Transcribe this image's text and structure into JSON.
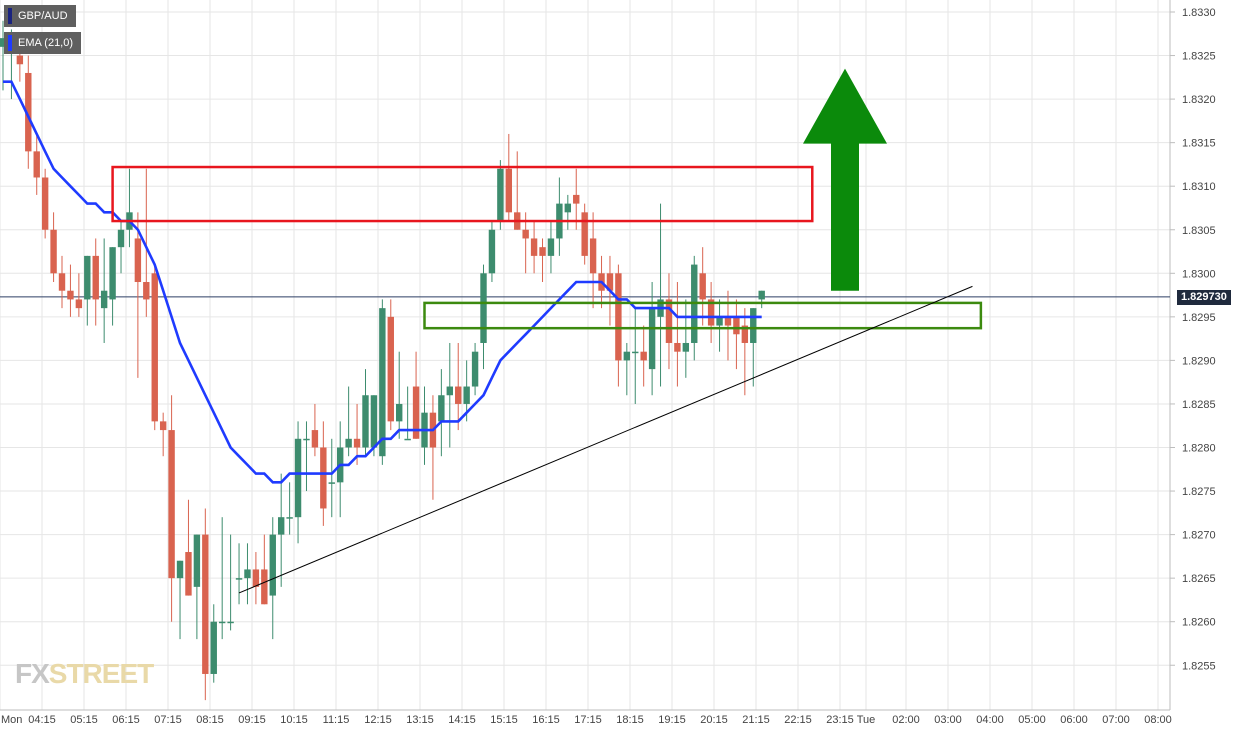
{
  "legend": {
    "symbol": "GBP/AUD",
    "indicator": "EMA (21,0)",
    "symbol_color": "#1a237e",
    "indicator_color": "#1f3bff"
  },
  "current_price": {
    "label": "1.829730",
    "value": 1.82973
  },
  "watermark": {
    "part1": "FX",
    "part2": "STREET"
  },
  "colors": {
    "up": "#3d8c6e",
    "down": "#d9634f",
    "ema": "#1f3bff",
    "resistance_box": "#e8161e",
    "support_box": "#3c8a0f",
    "arrow": "#0b8a0b",
    "trendline": "#000000",
    "grid": "#e6e6e6"
  },
  "chart_data": {
    "type": "candlestick",
    "title": "",
    "ylim": [
      1.825,
      1.833
    ],
    "y_ticks": [
      "1.8330",
      "1.8325",
      "1.8320",
      "1.8315",
      "1.8310",
      "1.8305",
      "1.8300",
      "1.8295",
      "1.8290",
      "1.8285",
      "1.8280",
      "1.8275",
      "1.8270",
      "1.8265",
      "1.8260",
      "1.8255"
    ],
    "x_ticks": [
      "Mon",
      "04:15",
      "05:15",
      "06:15",
      "07:15",
      "08:15",
      "09:15",
      "10:15",
      "11:15",
      "12:15",
      "13:15",
      "14:15",
      "15:15",
      "16:15",
      "17:15",
      "18:15",
      "19:15",
      "20:15",
      "21:15",
      "22:15",
      "23:15",
      "Tue",
      "02:00",
      "03:00",
      "04:00",
      "05:00",
      "06:00",
      "07:00",
      "08:00"
    ],
    "candles": [
      {
        "o": 1.8326,
        "h": 1.8329,
        "l": 1.8321,
        "c": 1.8327
      },
      {
        "o": 1.8326,
        "h": 1.8328,
        "l": 1.832,
        "c": 1.8327
      },
      {
        "o": 1.8325,
        "h": 1.8327,
        "l": 1.8322,
        "c": 1.8324
      },
      {
        "o": 1.8323,
        "h": 1.8325,
        "l": 1.8312,
        "c": 1.8314
      },
      {
        "o": 1.8314,
        "h": 1.8316,
        "l": 1.8309,
        "c": 1.8311
      },
      {
        "o": 1.8311,
        "h": 1.8312,
        "l": 1.8304,
        "c": 1.8305
      },
      {
        "o": 1.8305,
        "h": 1.8307,
        "l": 1.8299,
        "c": 1.83
      },
      {
        "o": 1.83,
        "h": 1.8302,
        "l": 1.8296,
        "c": 1.8298
      },
      {
        "o": 1.8298,
        "h": 1.8301,
        "l": 1.8295,
        "c": 1.8297
      },
      {
        "o": 1.8297,
        "h": 1.83,
        "l": 1.8295,
        "c": 1.8296
      },
      {
        "o": 1.8297,
        "h": 1.8302,
        "l": 1.8294,
        "c": 1.8302
      },
      {
        "o": 1.8302,
        "h": 1.8304,
        "l": 1.8294,
        "c": 1.8297
      },
      {
        "o": 1.8296,
        "h": 1.8304,
        "l": 1.8292,
        "c": 1.8298
      },
      {
        "o": 1.8297,
        "h": 1.8303,
        "l": 1.8294,
        "c": 1.8303
      },
      {
        "o": 1.8303,
        "h": 1.8306,
        "l": 1.83,
        "c": 1.8305
      },
      {
        "o": 1.8305,
        "h": 1.8312,
        "l": 1.8303,
        "c": 1.8307
      },
      {
        "o": 1.8304,
        "h": 1.8307,
        "l": 1.8288,
        "c": 1.8299
      },
      {
        "o": 1.8299,
        "h": 1.8312,
        "l": 1.8295,
        "c": 1.8297
      },
      {
        "o": 1.83,
        "h": 1.8301,
        "l": 1.8282,
        "c": 1.8283
      },
      {
        "o": 1.8283,
        "h": 1.8284,
        "l": 1.8279,
        "c": 1.8282
      },
      {
        "o": 1.8282,
        "h": 1.8286,
        "l": 1.826,
        "c": 1.8265
      },
      {
        "o": 1.8265,
        "h": 1.8267,
        "l": 1.8258,
        "c": 1.8267
      },
      {
        "o": 1.8268,
        "h": 1.8274,
        "l": 1.8263,
        "c": 1.8263
      },
      {
        "o": 1.8264,
        "h": 1.827,
        "l": 1.8258,
        "c": 1.827
      },
      {
        "o": 1.827,
        "h": 1.8273,
        "l": 1.8251,
        "c": 1.8254
      },
      {
        "o": 1.8254,
        "h": 1.8262,
        "l": 1.8253,
        "c": 1.826
      },
      {
        "o": 1.826,
        "h": 1.8272,
        "l": 1.8258,
        "c": 1.826
      },
      {
        "o": 1.826,
        "h": 1.827,
        "l": 1.8259,
        "c": 1.826
      },
      {
        "o": 1.8265,
        "h": 1.8269,
        "l": 1.8262,
        "c": 1.8265
      },
      {
        "o": 1.8265,
        "h": 1.8269,
        "l": 1.8262,
        "c": 1.8266
      },
      {
        "o": 1.8266,
        "h": 1.8268,
        "l": 1.8262,
        "c": 1.8264
      },
      {
        "o": 1.8266,
        "h": 1.827,
        "l": 1.8262,
        "c": 1.8262
      },
      {
        "o": 1.8263,
        "h": 1.8272,
        "l": 1.8258,
        "c": 1.827
      },
      {
        "o": 1.827,
        "h": 1.8277,
        "l": 1.8264,
        "c": 1.8272
      },
      {
        "o": 1.8272,
        "h": 1.8276,
        "l": 1.827,
        "c": 1.8272
      },
      {
        "o": 1.8272,
        "h": 1.8283,
        "l": 1.8269,
        "c": 1.8281
      },
      {
        "o": 1.8281,
        "h": 1.8283,
        "l": 1.8275,
        "c": 1.8281
      },
      {
        "o": 1.8282,
        "h": 1.8285,
        "l": 1.8279,
        "c": 1.828
      },
      {
        "o": 1.828,
        "h": 1.8283,
        "l": 1.8271,
        "c": 1.8273
      },
      {
        "o": 1.8276,
        "h": 1.8281,
        "l": 1.8272,
        "c": 1.8276
      },
      {
        "o": 1.8276,
        "h": 1.8283,
        "l": 1.8272,
        "c": 1.828
      },
      {
        "o": 1.828,
        "h": 1.8287,
        "l": 1.8279,
        "c": 1.8281
      },
      {
        "o": 1.8281,
        "h": 1.8285,
        "l": 1.8278,
        "c": 1.828
      },
      {
        "o": 1.828,
        "h": 1.8289,
        "l": 1.8279,
        "c": 1.8286
      },
      {
        "o": 1.828,
        "h": 1.8286,
        "l": 1.8279,
        "c": 1.8286
      },
      {
        "o": 1.8279,
        "h": 1.8297,
        "l": 1.8278,
        "c": 1.8296
      },
      {
        "o": 1.8295,
        "h": 1.8297,
        "l": 1.8282,
        "c": 1.8283
      },
      {
        "o": 1.8283,
        "h": 1.8291,
        "l": 1.8281,
        "c": 1.8285
      },
      {
        "o": 1.8281,
        "h": 1.8287,
        "l": 1.8281,
        "c": 1.8281
      },
      {
        "o": 1.8287,
        "h": 1.8291,
        "l": 1.8281,
        "c": 1.8281
      },
      {
        "o": 1.828,
        "h": 1.8287,
        "l": 1.8278,
        "c": 1.8284
      },
      {
        "o": 1.8284,
        "h": 1.8286,
        "l": 1.8274,
        "c": 1.828
      },
      {
        "o": 1.8283,
        "h": 1.8289,
        "l": 1.8279,
        "c": 1.8286
      },
      {
        "o": 1.8286,
        "h": 1.8292,
        "l": 1.828,
        "c": 1.8287
      },
      {
        "o": 1.8287,
        "h": 1.8292,
        "l": 1.8282,
        "c": 1.8285
      },
      {
        "o": 1.8285,
        "h": 1.829,
        "l": 1.8283,
        "c": 1.8287
      },
      {
        "o": 1.8287,
        "h": 1.8292,
        "l": 1.8286,
        "c": 1.8291
      },
      {
        "o": 1.8292,
        "h": 1.8301,
        "l": 1.8289,
        "c": 1.83
      },
      {
        "o": 1.83,
        "h": 1.8306,
        "l": 1.8299,
        "c": 1.8305
      },
      {
        "o": 1.8306,
        "h": 1.8313,
        "l": 1.8305,
        "c": 1.8312
      },
      {
        "o": 1.8312,
        "h": 1.8316,
        "l": 1.8306,
        "c": 1.8307
      },
      {
        "o": 1.8307,
        "h": 1.8314,
        "l": 1.8305,
        "c": 1.8305
      },
      {
        "o": 1.8305,
        "h": 1.8307,
        "l": 1.83,
        "c": 1.8304
      },
      {
        "o": 1.8304,
        "h": 1.8306,
        "l": 1.83,
        "c": 1.8302
      },
      {
        "o": 1.8303,
        "h": 1.8304,
        "l": 1.8299,
        "c": 1.8302
      },
      {
        "o": 1.8302,
        "h": 1.8306,
        "l": 1.83,
        "c": 1.8304
      },
      {
        "o": 1.8304,
        "h": 1.8311,
        "l": 1.8302,
        "c": 1.8308
      },
      {
        "o": 1.8307,
        "h": 1.8309,
        "l": 1.8305,
        "c": 1.8308
      },
      {
        "o": 1.8309,
        "h": 1.8312,
        "l": 1.8305,
        "c": 1.8308
      },
      {
        "o": 1.8307,
        "h": 1.8308,
        "l": 1.8301,
        "c": 1.8302
      },
      {
        "o": 1.8304,
        "h": 1.8307,
        "l": 1.8296,
        "c": 1.83
      },
      {
        "o": 1.83,
        "h": 1.8302,
        "l": 1.8296,
        "c": 1.8298
      },
      {
        "o": 1.83,
        "h": 1.8302,
        "l": 1.8294,
        "c": 1.8298
      },
      {
        "o": 1.83,
        "h": 1.8301,
        "l": 1.8287,
        "c": 1.829
      },
      {
        "o": 1.829,
        "h": 1.8292,
        "l": 1.8286,
        "c": 1.8291
      },
      {
        "o": 1.8291,
        "h": 1.8296,
        "l": 1.8285,
        "c": 1.8291
      },
      {
        "o": 1.8291,
        "h": 1.8294,
        "l": 1.8287,
        "c": 1.829
      },
      {
        "o": 1.8289,
        "h": 1.8299,
        "l": 1.8286,
        "c": 1.8296
      },
      {
        "o": 1.8295,
        "h": 1.8308,
        "l": 1.8287,
        "c": 1.8297
      },
      {
        "o": 1.8297,
        "h": 1.83,
        "l": 1.8289,
        "c": 1.8292
      },
      {
        "o": 1.8292,
        "h": 1.8299,
        "l": 1.8287,
        "c": 1.8291
      },
      {
        "o": 1.8291,
        "h": 1.8297,
        "l": 1.8288,
        "c": 1.8292
      },
      {
        "o": 1.8292,
        "h": 1.8302,
        "l": 1.829,
        "c": 1.8301
      },
      {
        "o": 1.83,
        "h": 1.8303,
        "l": 1.8294,
        "c": 1.8297
      },
      {
        "o": 1.8297,
        "h": 1.8299,
        "l": 1.8292,
        "c": 1.8294
      },
      {
        "o": 1.8294,
        "h": 1.8297,
        "l": 1.8291,
        "c": 1.8295
      },
      {
        "o": 1.8295,
        "h": 1.8298,
        "l": 1.829,
        "c": 1.8294
      },
      {
        "o": 1.8295,
        "h": 1.8297,
        "l": 1.8289,
        "c": 1.8293
      },
      {
        "o": 1.8294,
        "h": 1.8296,
        "l": 1.8286,
        "c": 1.8292
      },
      {
        "o": 1.8292,
        "h": 1.8296,
        "l": 1.8287,
        "c": 1.8296
      },
      {
        "o": 1.8297,
        "h": 1.8298,
        "l": 1.8296,
        "c": 1.8298
      }
    ],
    "ema": [
      1.8322,
      1.8322,
      1.832,
      1.8318,
      1.8316,
      1.8314,
      1.8312,
      1.8311,
      1.831,
      1.8309,
      1.8308,
      1.8308,
      1.8307,
      1.8307,
      1.8306,
      1.8306,
      1.8305,
      1.8303,
      1.8301,
      1.8298,
      1.8295,
      1.8292,
      1.829,
      1.8288,
      1.8286,
      1.8284,
      1.8282,
      1.828,
      1.8279,
      1.8278,
      1.8277,
      1.8277,
      1.8276,
      1.8276,
      1.8277,
      1.8277,
      1.8277,
      1.8277,
      1.8277,
      1.8277,
      1.8278,
      1.8278,
      1.8279,
      1.8279,
      1.828,
      1.8281,
      1.8281,
      1.8282,
      1.8282,
      1.8282,
      1.8282,
      1.8282,
      1.8283,
      1.8283,
      1.8283,
      1.8284,
      1.8285,
      1.8286,
      1.8288,
      1.829,
      1.8291,
      1.8292,
      1.8293,
      1.8294,
      1.8295,
      1.8296,
      1.8297,
      1.8298,
      1.8299,
      1.8299,
      1.8299,
      1.8299,
      1.8298,
      1.8297,
      1.8297,
      1.8296,
      1.8296,
      1.8296,
      1.8296,
      1.8296,
      1.8295,
      1.8295,
      1.8295,
      1.8295,
      1.8295,
      1.8295,
      1.8295,
      1.8295,
      1.8295,
      1.8295,
      1.8295
    ],
    "annotations": {
      "resistance_zone": {
        "y_low": 1.8306,
        "y_high": 1.83122,
        "from_candle": 13,
        "to_candle": 96
      },
      "support_zone": {
        "y_low": 1.82937,
        "y_high": 1.82966,
        "from_candle": 50,
        "to_candle": 116
      },
      "trendline": {
        "from": {
          "candle": 28,
          "price": 1.82633
        },
        "to": {
          "candle": 115,
          "price": 1.82985
        }
      },
      "arrow_up": {
        "y_base": 1.8298,
        "y_tip": 1.83235,
        "candle": 100
      }
    }
  }
}
